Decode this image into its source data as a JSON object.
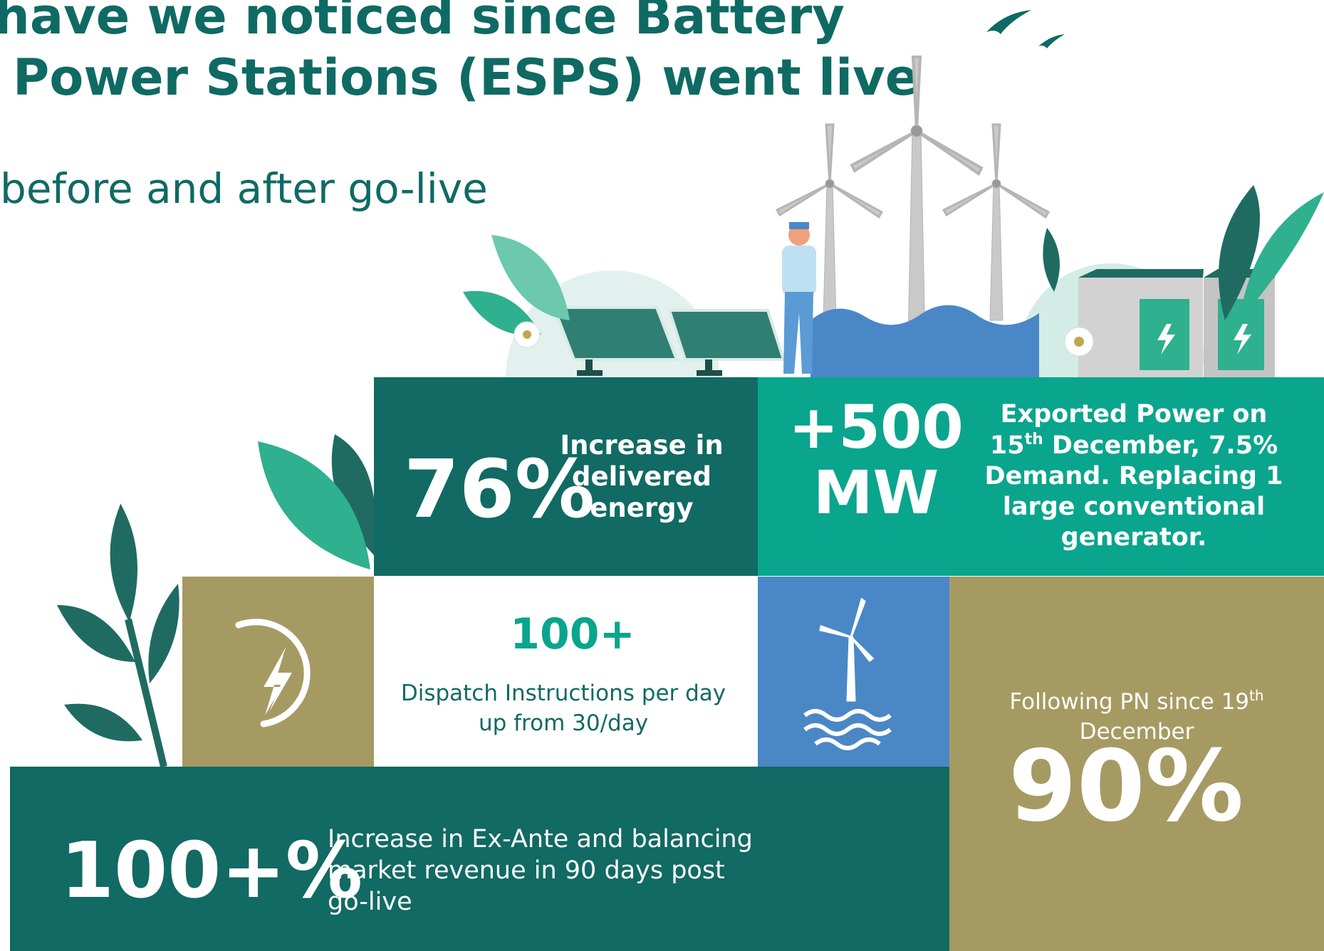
{
  "title_lines": [
    "have we noticed since Battery",
    "Power Stations (ESPS) went live"
  ],
  "subtitle": "before and after go-live",
  "delivered": {
    "value": "76%",
    "label_lines": [
      "Increase in",
      "delivered",
      "energy"
    ]
  },
  "exported": {
    "value_lines": [
      "+500",
      "MW"
    ],
    "text_lines": [
      [
        "Exported Power on"
      ],
      [
        "15",
        "th",
        " December, 7.5%"
      ],
      [
        "Demand. Replacing 1"
      ],
      [
        "large conventional"
      ],
      [
        "generator."
      ]
    ]
  },
  "dispatch": {
    "value": "100+",
    "text_lines": [
      "Dispatch Instructions per day",
      "up from 30/day"
    ]
  },
  "following": {
    "text_lines": [
      [
        "Following PN since 19",
        "th"
      ],
      [
        "December"
      ]
    ],
    "value": "90%"
  },
  "revenue": {
    "value": "100+%",
    "text_lines": [
      "Increase in Ex-Ante and balancing",
      "market revenue in 90 days post",
      "go-live"
    ]
  }
}
